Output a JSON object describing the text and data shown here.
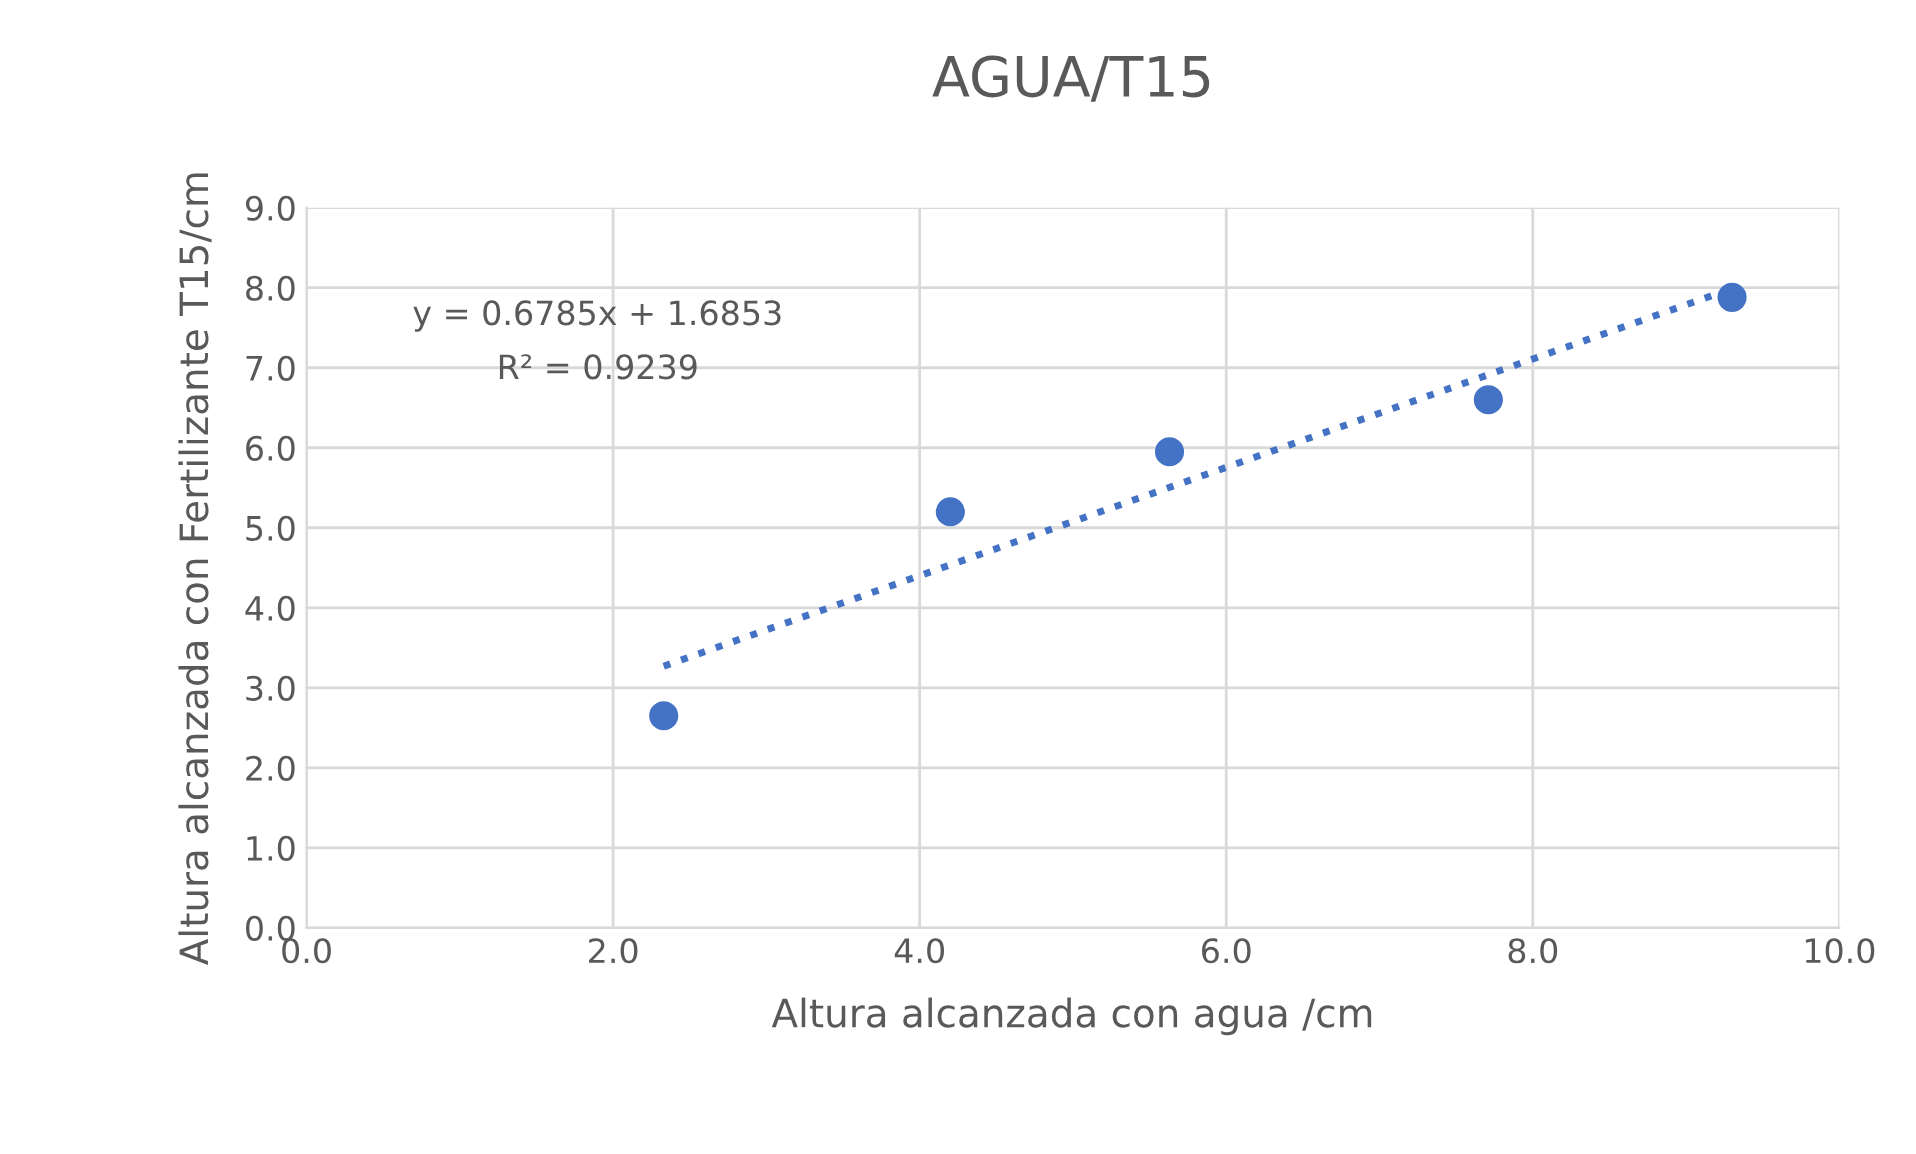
{
  "chart_data": {
    "type": "scatter",
    "title": "AGUA/T15",
    "xlabel": "Altura alcanzada con agua /cm",
    "ylabel": "Altura alcanzada con Fertilizante T15/cm",
    "series": [
      {
        "color": "#4472c4",
        "marker": "circle",
        "x": [
          2.33,
          4.2,
          5.63,
          7.71,
          9.3
        ],
        "values": [
          2.65,
          5.2,
          5.95,
          6.6,
          7.88
        ]
      },
      {
        "type": "line",
        "color": "#4472c4",
        "line_style": "dotted",
        "marker": "none",
        "x": [
          2.33,
          9.3
        ],
        "values": [
          3.27,
          7.99
        ]
      }
    ],
    "annotations": [
      "y = 0.6785x + 1.6853",
      "R² = 0.9239"
    ],
    "xlim": [
      0,
      10
    ],
    "xticks": [
      {
        "value": 0,
        "label": "0.0"
      },
      {
        "value": 2,
        "label": "2.0"
      },
      {
        "value": 4,
        "label": "4.0"
      },
      {
        "value": 6,
        "label": "6.0"
      },
      {
        "value": 8,
        "label": "8.0"
      },
      {
        "value": 10,
        "label": "10.0"
      }
    ],
    "ylim": [
      0,
      9
    ],
    "yticks": [
      {
        "value": 0,
        "label": "0.0"
      },
      {
        "value": 1,
        "label": "1.0"
      },
      {
        "value": 2,
        "label": "2.0"
      },
      {
        "value": 3,
        "label": "3.0"
      },
      {
        "value": 4,
        "label": "4.0"
      },
      {
        "value": 5,
        "label": "5.0"
      },
      {
        "value": 6,
        "label": "6.0"
      },
      {
        "value": 7,
        "label": "7.0"
      },
      {
        "value": 8,
        "label": "8.0"
      },
      {
        "value": 9,
        "label": "9.0"
      }
    ],
    "grid": true
  }
}
